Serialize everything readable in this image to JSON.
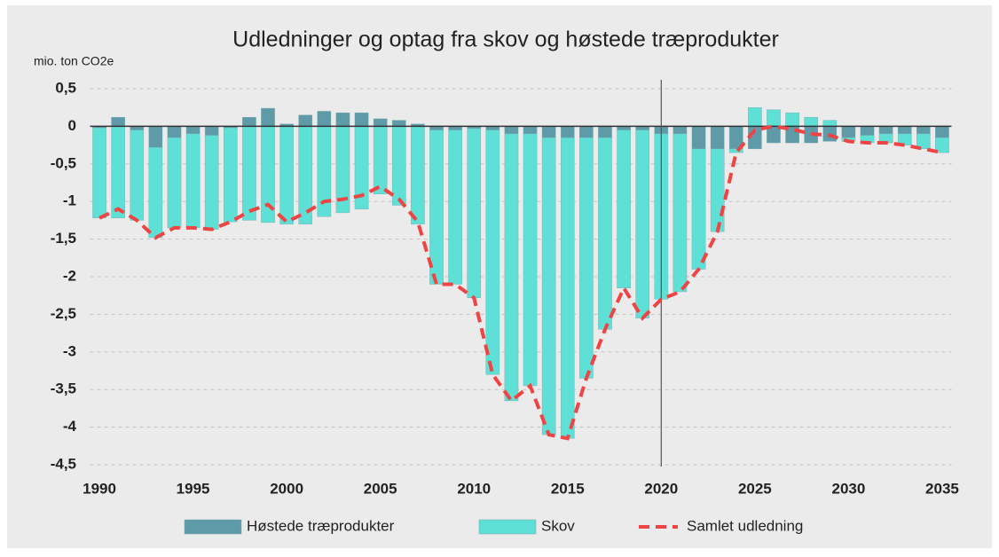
{
  "chart_data": {
    "type": "bar",
    "stacked": true,
    "title": "Udledninger og optag fra skov og høstede træprodukter",
    "y_label": "mio. ton CO2e",
    "x": [
      1990,
      1991,
      1992,
      1993,
      1994,
      1995,
      1996,
      1997,
      1998,
      1999,
      2000,
      2001,
      2002,
      2003,
      2004,
      2005,
      2006,
      2007,
      2008,
      2009,
      2010,
      2011,
      2012,
      2013,
      2014,
      2015,
      2016,
      2017,
      2018,
      2019,
      2020,
      2021,
      2022,
      2023,
      2024,
      2025,
      2026,
      2027,
      2028,
      2029,
      2030,
      2031,
      2032,
      2033,
      2034,
      2035
    ],
    "series": [
      {
        "name": "Høstede træprodukter",
        "color": "#5e9aa8",
        "type": "bar",
        "values": [
          -0.02,
          0.12,
          -0.05,
          -0.28,
          -0.15,
          -0.1,
          -0.12,
          -0.02,
          0.12,
          0.24,
          0.03,
          0.15,
          0.2,
          0.18,
          0.18,
          0.1,
          0.08,
          0.03,
          -0.05,
          -0.05,
          -0.03,
          -0.05,
          -0.1,
          -0.1,
          -0.15,
          -0.15,
          -0.15,
          -0.15,
          -0.05,
          -0.05,
          -0.1,
          -0.1,
          -0.3,
          -0.3,
          -0.3,
          -0.3,
          -0.22,
          -0.22,
          -0.22,
          -0.2,
          -0.15,
          -0.12,
          -0.1,
          -0.1,
          -0.1,
          -0.15
        ]
      },
      {
        "name": "Skov",
        "color": "#5fe0d6",
        "type": "bar",
        "values": [
          -1.2,
          -1.22,
          -1.2,
          -1.2,
          -1.2,
          -1.25,
          -1.25,
          -1.25,
          -1.25,
          -1.28,
          -1.3,
          -1.3,
          -1.2,
          -1.15,
          -1.1,
          -0.9,
          -1.05,
          -1.3,
          -2.05,
          -2.05,
          -2.25,
          -3.25,
          -3.55,
          -3.35,
          -3.95,
          -4.0,
          -3.2,
          -2.55,
          -2.1,
          -2.5,
          -2.2,
          -2.1,
          -1.6,
          -1.1,
          -0.05,
          0.25,
          0.22,
          0.18,
          0.12,
          0.08,
          -0.05,
          -0.1,
          -0.12,
          -0.15,
          -0.2,
          -0.2
        ]
      },
      {
        "name": "Samlet udledning",
        "color": "#ee4444",
        "type": "line",
        "dashed": true,
        "values": [
          -1.22,
          -1.1,
          -1.25,
          -1.48,
          -1.35,
          -1.35,
          -1.37,
          -1.27,
          -1.13,
          -1.04,
          -1.27,
          -1.15,
          -1.0,
          -0.97,
          -0.92,
          -0.8,
          -0.97,
          -1.27,
          -2.1,
          -2.1,
          -2.28,
          -3.3,
          -3.65,
          -3.45,
          -4.1,
          -4.15,
          -3.35,
          -2.7,
          -2.15,
          -2.55,
          -2.3,
          -2.2,
          -1.9,
          -1.4,
          -0.35,
          -0.05,
          0,
          -0.04,
          -0.1,
          -0.12,
          -0.2,
          -0.22,
          -0.22,
          -0.25,
          -0.3,
          -0.35
        ]
      }
    ],
    "vline": 2020,
    "xlim": [
      1989.5,
      2035.5
    ],
    "xticks": [
      1990,
      1995,
      2000,
      2005,
      2010,
      2015,
      2020,
      2025,
      2030,
      2035
    ],
    "ylim": [
      -4.5,
      0.5
    ],
    "yticks": [
      {
        "value": 0.5,
        "label": "0,5"
      },
      0,
      {
        "value": -0.5,
        "label": "-0,5"
      },
      -1,
      {
        "value": -1.5,
        "label": "-1,5"
      },
      -2,
      {
        "value": -2.5,
        "label": "-2,5"
      },
      -3,
      {
        "value": -3.5,
        "label": "-3,5"
      },
      -4,
      {
        "value": -4.5,
        "label": "-4,5"
      }
    ],
    "grid": true,
    "legend": "bottom"
  }
}
